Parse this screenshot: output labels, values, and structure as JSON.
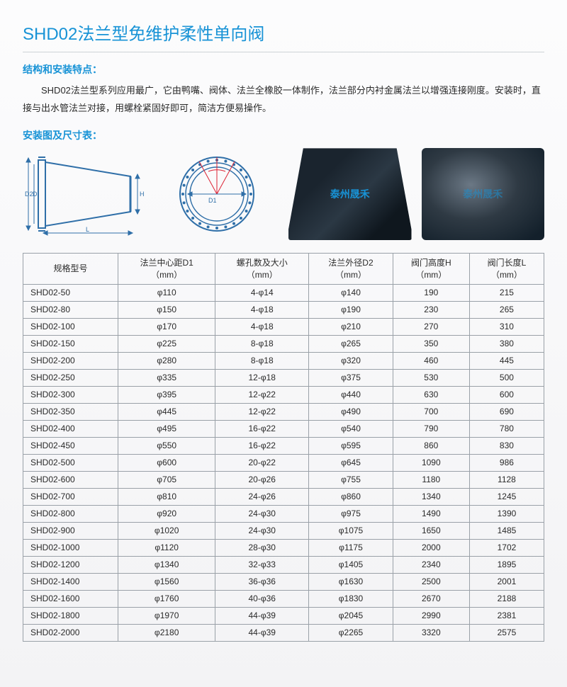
{
  "title": "SHD02法兰型免维护柔性单向阀",
  "section1": {
    "heading": "结构和安装特点：",
    "text": "SHD02法兰型系列应用最广，它由鸭嘴、阀体、法兰全橡胶一体制作，法兰部分内衬金属法兰以增强连接刚度。安装时，直接与出水管法兰对接，用螺栓紧固好即可，简洁方便易操作。"
  },
  "section2": {
    "heading": "安装图及尺寸表："
  },
  "watermark": "泰州晟禾",
  "diagram_labels": {
    "D": "D",
    "D2": "D2",
    "L": "L",
    "H": "H",
    "D1": "D1"
  },
  "colors": {
    "accent": "#1893d6",
    "line": "#2f6fa8",
    "border": "#9aa1a8",
    "text": "#2a2a2a"
  },
  "table": {
    "columns": [
      "规格型号",
      "法兰中心距D1\n（mm）",
      "螺孔数及大小\n（mm）",
      "法兰外径D2\n（mm）",
      "阀门高度H\n（mm）",
      "阀门长度L\n（mm）"
    ],
    "rows": [
      [
        "SHD02-50",
        "φ110",
        "4-φ14",
        "φ140",
        "190",
        "215"
      ],
      [
        "SHD02-80",
        "φ150",
        "4-φ18",
        "φ190",
        "230",
        "265"
      ],
      [
        "SHD02-100",
        "φ170",
        "4-φ18",
        "φ210",
        "270",
        "310"
      ],
      [
        "SHD02-150",
        "φ225",
        "8-φ18",
        "φ265",
        "350",
        "380"
      ],
      [
        "SHD02-200",
        "φ280",
        "8-φ18",
        "φ320",
        "460",
        "445"
      ],
      [
        "SHD02-250",
        "φ335",
        "12-φ18",
        "φ375",
        "530",
        "500"
      ],
      [
        "SHD02-300",
        "φ395",
        "12-φ22",
        "φ440",
        "630",
        "600"
      ],
      [
        "SHD02-350",
        "φ445",
        "12-φ22",
        "φ490",
        "700",
        "690"
      ],
      [
        "SHD02-400",
        "φ495",
        "16-φ22",
        "φ540",
        "790",
        "780"
      ],
      [
        "SHD02-450",
        "φ550",
        "16-φ22",
        "φ595",
        "860",
        "830"
      ],
      [
        "SHD02-500",
        "φ600",
        "20-φ22",
        "φ645",
        "1090",
        "986"
      ],
      [
        "SHD02-600",
        "φ705",
        "20-φ26",
        "φ755",
        "1180",
        "1128"
      ],
      [
        "SHD02-700",
        "φ810",
        "24-φ26",
        "φ860",
        "1340",
        "1245"
      ],
      [
        "SHD02-800",
        "φ920",
        "24-φ30",
        "φ975",
        "1490",
        "1390"
      ],
      [
        "SHD02-900",
        "φ1020",
        "24-φ30",
        "φ1075",
        "1650",
        "1485"
      ],
      [
        "SHD02-1000",
        "φ1120",
        "28-φ30",
        "φ1175",
        "2000",
        "1702"
      ],
      [
        "SHD02-1200",
        "φ1340",
        "32-φ33",
        "φ1405",
        "2340",
        "1895"
      ],
      [
        "SHD02-1400",
        "φ1560",
        "36-φ36",
        "φ1630",
        "2500",
        "2001"
      ],
      [
        "SHD02-1600",
        "φ1760",
        "40-φ36",
        "φ1830",
        "2670",
        "2188"
      ],
      [
        "SHD02-1800",
        "φ1970",
        "44-φ39",
        "φ2045",
        "2990",
        "2381"
      ],
      [
        "SHD02-2000",
        "φ2180",
        "44-φ39",
        "φ2265",
        "3320",
        "2575"
      ]
    ]
  }
}
